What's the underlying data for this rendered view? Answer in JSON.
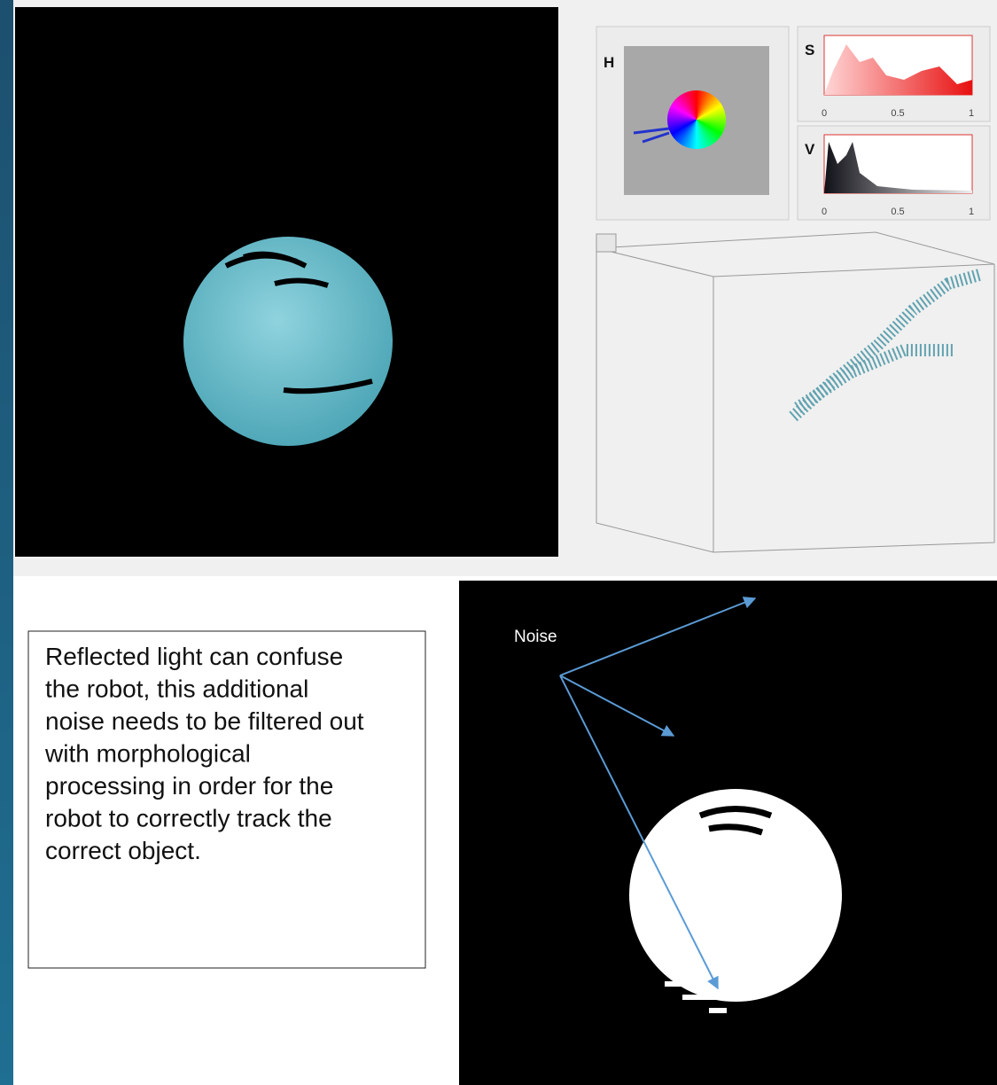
{
  "thresholder": {
    "hue_label": "H",
    "saturation": {
      "label": "S",
      "ticks": [
        "0",
        "0.5",
        "1"
      ]
    },
    "value": {
      "label": "V",
      "ticks": [
        "0",
        "0.5",
        "1"
      ]
    }
  },
  "note": {
    "lines": [
      "Reflected light can confuse",
      "the robot, this additional",
      "noise needs to be filtered out",
      "with morphological",
      "processing in order for the",
      "robot to correctly track the",
      "correct object."
    ]
  },
  "mask": {
    "label": "Noise"
  }
}
